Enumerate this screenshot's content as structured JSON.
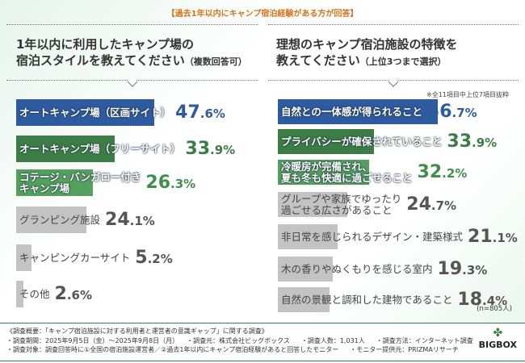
{
  "banner": "【過去1年以内にキャンプ宿泊経験がある方が回答】",
  "left": {
    "q1": "1年以内に利用したキャンプ場の",
    "q2": "宿泊スタイルを教えてください",
    "q_note": "（複数回答可）"
  },
  "right": {
    "q1": "理想のキャンプ宿泊施設の特徴を",
    "q2": "教えてください",
    "q_note": "（上位3つまで選択）",
    "note": "※全11項目中上位7項目抜粋",
    "n": "(n=805人)"
  },
  "colors": {
    "blue": "#2e5b9f",
    "green": "#3c7d45",
    "light_green": "#54a05e",
    "grey": "#c3c3c3"
  },
  "chart_data": [
    {
      "type": "bar",
      "orientation": "horizontal",
      "unit": "%",
      "categories": [
        "オートキャンプ場（区画サイト）",
        "オートキャンプ場（フリーサイト）",
        "コテージ・バンガロー付き\nキャンプ場",
        "グランピング施設",
        "キャンピングカーサイト",
        "その他"
      ],
      "values": [
        47.6,
        33.9,
        26.3,
        24.1,
        5.2,
        2.6
      ],
      "labels": [
        "47.6%",
        "33.9%",
        "26.3%",
        "24.1%",
        "5.2%",
        "2.6%"
      ],
      "colors": [
        "blue",
        "green",
        "light_green",
        "grey",
        "grey",
        "grey"
      ]
    },
    {
      "type": "bar",
      "orientation": "horizontal",
      "unit": "%",
      "categories": [
        "自然との一体感が得られること",
        "プライバシーが確保されていること",
        "冷暖房が完備され、\n夏も冬も快適に過ごせること",
        "グループや家族でゆったり\n過ごせる広さがあること",
        "非日常を感じられるデザイン・建築様式",
        "木の香りやぬくもりを感じる室内",
        "自然の景観と調和した建物であること"
      ],
      "values": [
        56.7,
        33.9,
        32.2,
        24.7,
        21.1,
        19.3,
        18.4
      ],
      "labels": [
        "56.7%",
        "33.9%",
        "32.2%",
        "24.7%",
        "21.1%",
        "19.3%",
        "18.4%"
      ],
      "colors": [
        "blue",
        "green",
        "light_green",
        "grey",
        "grey",
        "grey",
        "grey"
      ]
    }
  ],
  "footer": {
    "title": "《調査概要：「キャンプ宿泊施設に対する利用者と運営者の意識ギャップ」に関する調査》",
    "period": "・調査期間：2025年9月5日（金）～2025年9月8日（月）",
    "org": "・調査元：株式会社ビッグボックス",
    "count": "・調査人数：1,031人",
    "method": "・調査方法：インターネット調査",
    "target": "・調査対象：調査回答時に①全国の宿泊施設運営者／②過去1年以内にキャンプ宿泊経験があると回答したモニター",
    "provider": "・モニター提供元：PRIZMAリサーチ"
  },
  "logo": "BIGBOX"
}
